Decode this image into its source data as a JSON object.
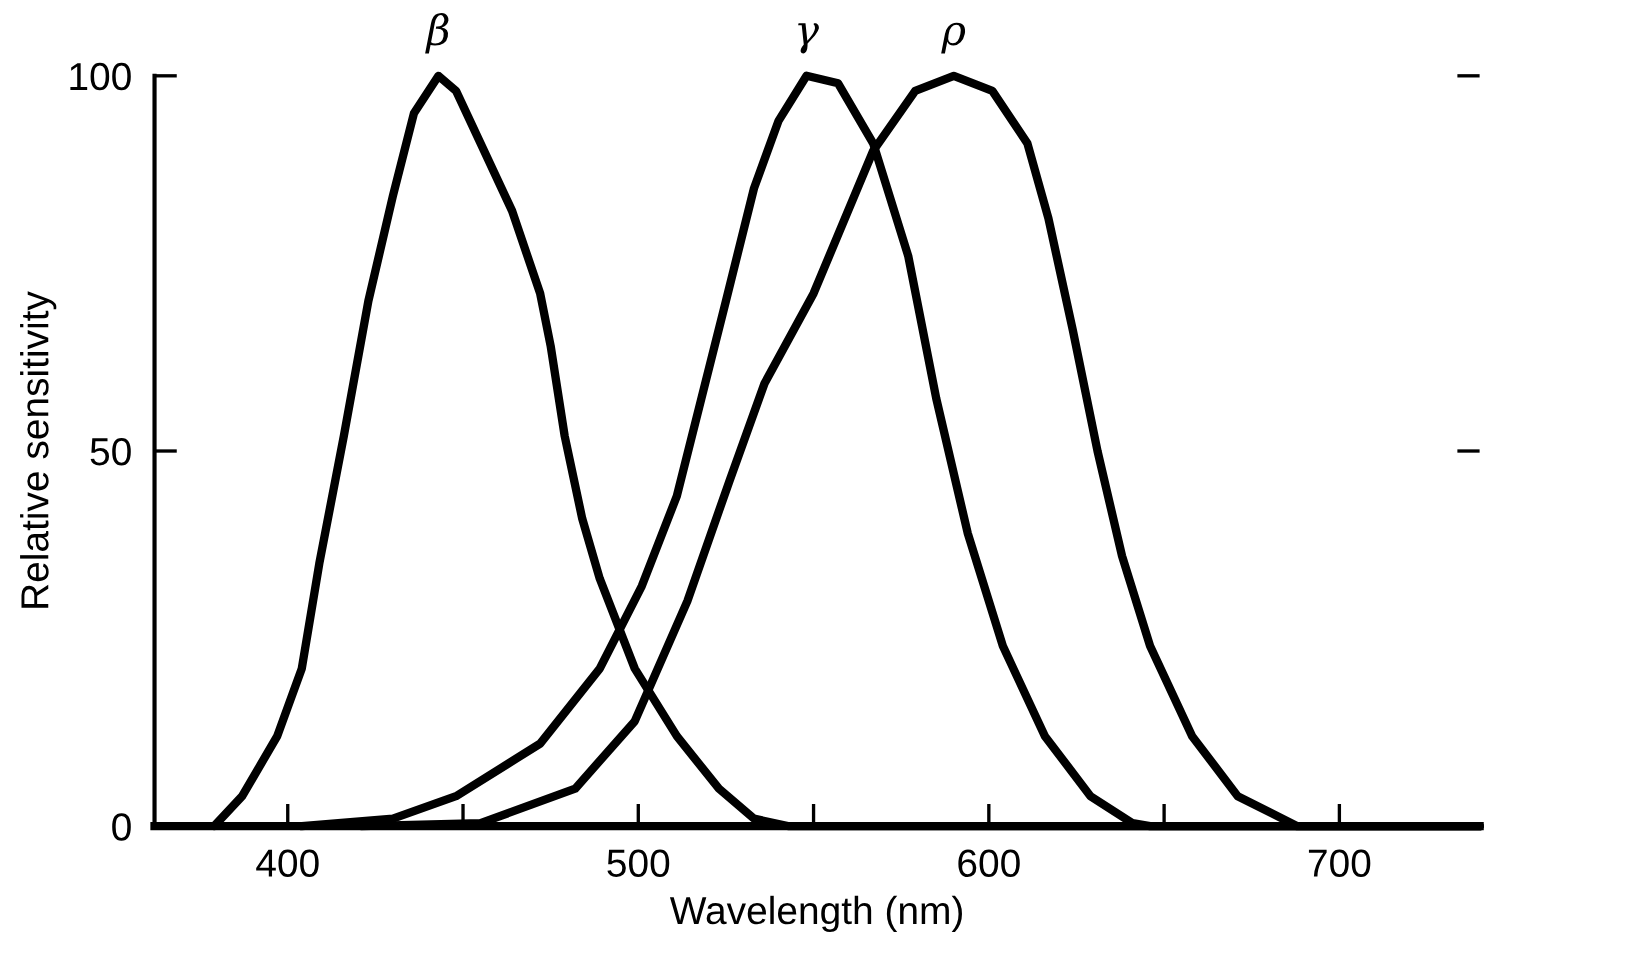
{
  "chart_data": {
    "type": "line",
    "xlabel": "Wavelength (nm)",
    "ylabel": "Relative sensitivity",
    "xlim": [
      362,
      740
    ],
    "ylim": [
      0,
      100
    ],
    "xticks": [
      {
        "value": 400,
        "label": "400"
      },
      {
        "value": 450,
        "label": null
      },
      {
        "value": 500,
        "label": "500"
      },
      {
        "value": 550,
        "label": null
      },
      {
        "value": 600,
        "label": "600"
      },
      {
        "value": 650,
        "label": null
      },
      {
        "value": 700,
        "label": "700"
      }
    ],
    "yticks": [
      0,
      50,
      100
    ],
    "grid": false,
    "legend": false,
    "marker": "none",
    "line_style": "solid",
    "series": [
      {
        "name": "β",
        "color": "#000000",
        "x": [
          379,
          387,
          397,
          404,
          409,
          416,
          423,
          430,
          436,
          443,
          448,
          455,
          464,
          472,
          475,
          479,
          484,
          489,
          499,
          511,
          523,
          533,
          543,
          740
        ],
        "values": [
          0,
          4,
          12,
          21,
          35,
          52,
          70,
          84,
          95,
          100,
          98,
          91,
          82,
          71,
          64,
          52,
          41,
          33,
          21,
          12,
          5,
          1,
          0,
          0
        ]
      },
      {
        "name": "γ",
        "color": "#000000",
        "x": [
          404,
          430,
          448,
          472,
          489,
          501,
          511,
          518,
          525,
          533,
          540,
          548,
          557,
          567,
          577,
          585,
          594,
          604,
          616,
          629,
          641,
          646,
          740
        ],
        "values": [
          0,
          1,
          4,
          11,
          21,
          32,
          44,
          57,
          70,
          85,
          94,
          100,
          99,
          91,
          76,
          57,
          39,
          24,
          12,
          4,
          0.4,
          0,
          0
        ]
      },
      {
        "name": "ρ",
        "color": "#000000",
        "x": [
          421,
          455,
          482,
          499,
          514,
          526,
          536,
          550,
          567,
          579,
          590,
          601,
          611,
          617,
          624,
          631,
          638,
          646,
          658,
          671,
          688,
          740
        ],
        "values": [
          0,
          0.4,
          5,
          14,
          30,
          46,
          59,
          71,
          90,
          98,
          100,
          98,
          91,
          81,
          66,
          50,
          36,
          24,
          12,
          4,
          0,
          0
        ]
      }
    ]
  }
}
